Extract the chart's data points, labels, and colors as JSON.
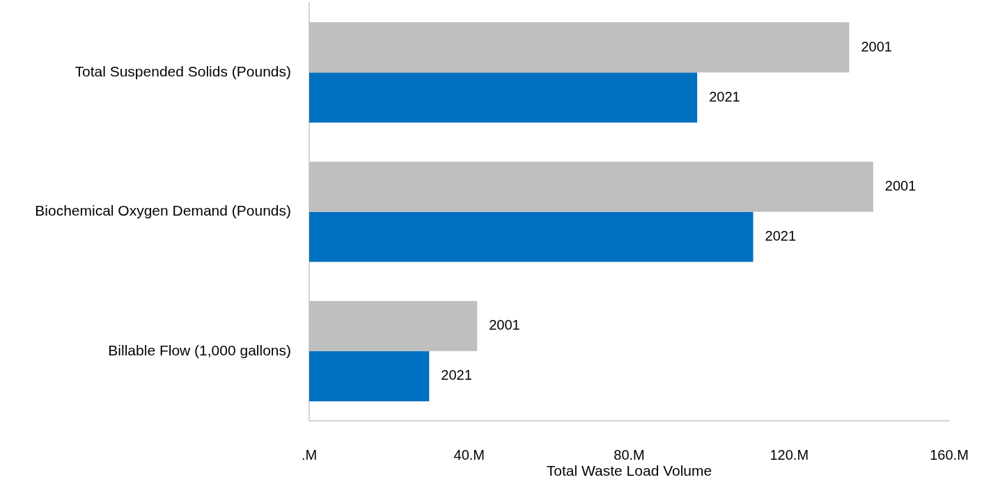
{
  "chart_data": {
    "type": "bar",
    "orientation": "horizontal",
    "categories": [
      "Total Suspended Solids (Pounds)",
      "Biochemical Oxygen Demand (Pounds)",
      "Billable Flow (1,000 gallons)"
    ],
    "series": [
      {
        "name": "2001",
        "color": "#bfbfbf",
        "values": [
          135,
          141,
          42
        ]
      },
      {
        "name": "2021",
        "color": "#0070c0",
        "values": [
          97,
          111,
          30
        ]
      }
    ],
    "xlabel": "Total Waste Load Volume",
    "xlim": [
      0,
      160
    ],
    "xticks": [
      {
        "value": 0,
        "label": ".M"
      },
      {
        "value": 40,
        "label": "40.M"
      },
      {
        "value": 80,
        "label": "80.M"
      },
      {
        "value": 120,
        "label": "120.M"
      },
      {
        "value": 160,
        "label": "160.M"
      }
    ]
  }
}
